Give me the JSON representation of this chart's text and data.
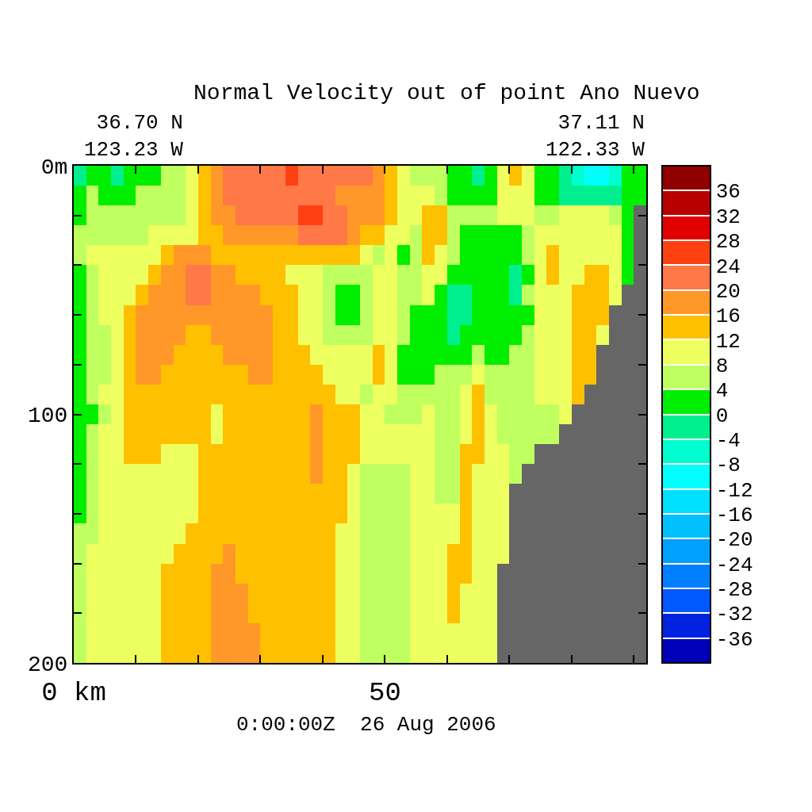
{
  "chart_data": {
    "type": "heatmap",
    "title": "Normal Velocity out of point Ano Nuevo",
    "annotations": [
      "36.70 N\n123.23 W",
      "37.11 N\n122.33 W",
      "0:00:00Z  26 Aug 2006"
    ],
    "x": [
      1,
      3,
      5,
      7,
      9,
      11,
      13,
      15,
      17,
      19,
      21,
      23,
      25,
      27,
      29,
      31,
      33,
      35,
      37,
      39,
      41,
      43,
      45,
      47,
      49,
      51,
      53,
      55,
      57,
      59,
      61,
      63,
      65,
      67,
      69,
      71,
      73,
      75,
      77,
      79,
      81,
      83,
      85,
      87,
      89,
      91
    ],
    "cells": [
      [
        -2,
        2,
        2,
        -2,
        2,
        2,
        2,
        6,
        6,
        10,
        14,
        18,
        22,
        22,
        22,
        22,
        22,
        26,
        22,
        22,
        22,
        22,
        22,
        22,
        18,
        14,
        10,
        6,
        6,
        6,
        2,
        2,
        -2,
        2,
        10,
        14,
        10,
        2,
        2,
        -2,
        -6,
        -10,
        -10,
        -6,
        2,
        2
      ],
      [
        2,
        6,
        2,
        2,
        2,
        6,
        6,
        6,
        6,
        10,
        14,
        18,
        22,
        22,
        22,
        22,
        22,
        22,
        22,
        22,
        22,
        18,
        18,
        18,
        18,
        14,
        10,
        10,
        10,
        6,
        2,
        2,
        2,
        2,
        10,
        10,
        10,
        2,
        2,
        -2,
        -2,
        -2,
        -2,
        -2,
        2,
        2
      ],
      [
        2,
        6,
        6,
        6,
        6,
        6,
        6,
        6,
        6,
        10,
        14,
        18,
        18,
        22,
        22,
        22,
        22,
        22,
        26,
        26,
        22,
        22,
        18,
        18,
        18,
        14,
        10,
        10,
        14,
        14,
        6,
        6,
        6,
        6,
        10,
        10,
        10,
        6,
        6,
        10,
        10,
        10,
        10,
        6,
        2,
        null
      ],
      [
        6,
        6,
        6,
        6,
        6,
        6,
        10,
        10,
        10,
        10,
        14,
        14,
        18,
        18,
        18,
        18,
        18,
        18,
        22,
        22,
        22,
        22,
        18,
        14,
        14,
        10,
        10,
        6,
        14,
        14,
        6,
        2,
        2,
        2,
        2,
        2,
        6,
        10,
        10,
        10,
        10,
        10,
        10,
        10,
        2,
        null
      ],
      [
        6,
        10,
        10,
        10,
        10,
        10,
        10,
        14,
        18,
        18,
        18,
        14,
        14,
        14,
        14,
        14,
        14,
        14,
        14,
        14,
        14,
        14,
        14,
        10,
        6,
        10,
        2,
        6,
        14,
        10,
        6,
        2,
        2,
        2,
        2,
        2,
        6,
        10,
        14,
        10,
        10,
        10,
        10,
        10,
        2,
        null
      ],
      [
        2,
        6,
        10,
        10,
        10,
        10,
        14,
        18,
        18,
        22,
        22,
        18,
        18,
        14,
        14,
        14,
        14,
        10,
        10,
        10,
        6,
        6,
        6,
        6,
        10,
        10,
        6,
        6,
        10,
        10,
        2,
        2,
        2,
        2,
        2,
        -2,
        2,
        10,
        14,
        10,
        10,
        14,
        14,
        10,
        2,
        null
      ],
      [
        2,
        6,
        10,
        10,
        10,
        14,
        18,
        18,
        18,
        22,
        22,
        18,
        18,
        18,
        18,
        14,
        14,
        14,
        10,
        10,
        6,
        2,
        2,
        6,
        10,
        10,
        6,
        6,
        10,
        2,
        -2,
        -2,
        2,
        2,
        2,
        -2,
        6,
        10,
        10,
        10,
        14,
        14,
        14,
        10,
        null,
        null
      ],
      [
        2,
        6,
        10,
        10,
        14,
        18,
        18,
        18,
        18,
        18,
        18,
        18,
        18,
        18,
        18,
        18,
        14,
        14,
        10,
        10,
        6,
        2,
        2,
        6,
        10,
        10,
        6,
        2,
        2,
        2,
        -2,
        -2,
        2,
        2,
        2,
        2,
        2,
        10,
        10,
        10,
        14,
        14,
        14,
        null,
        null,
        null
      ],
      [
        2,
        6,
        6,
        10,
        14,
        18,
        18,
        18,
        18,
        14,
        14,
        18,
        18,
        18,
        18,
        18,
        14,
        14,
        10,
        10,
        6,
        6,
        6,
        6,
        10,
        10,
        6,
        2,
        2,
        2,
        -2,
        2,
        2,
        2,
        2,
        2,
        6,
        10,
        10,
        10,
        14,
        14,
        10,
        null,
        null,
        null
      ],
      [
        2,
        6,
        6,
        10,
        14,
        18,
        18,
        18,
        14,
        14,
        14,
        14,
        18,
        18,
        18,
        18,
        14,
        14,
        14,
        10,
        10,
        10,
        10,
        10,
        14,
        10,
        2,
        2,
        2,
        2,
        2,
        2,
        6,
        2,
        2,
        6,
        6,
        10,
        10,
        10,
        14,
        14,
        null,
        null,
        null,
        null
      ],
      [
        2,
        6,
        6,
        10,
        14,
        18,
        18,
        14,
        14,
        14,
        14,
        14,
        14,
        14,
        18,
        18,
        14,
        14,
        14,
        14,
        10,
        10,
        10,
        10,
        14,
        10,
        2,
        2,
        2,
        6,
        6,
        6,
        10,
        6,
        6,
        6,
        6,
        10,
        10,
        10,
        14,
        14,
        null,
        null,
        null,
        null
      ],
      [
        2,
        6,
        10,
        10,
        14,
        14,
        14,
        14,
        14,
        14,
        14,
        14,
        14,
        14,
        14,
        14,
        14,
        14,
        14,
        14,
        14,
        10,
        10,
        6,
        10,
        10,
        6,
        6,
        6,
        6,
        6,
        10,
        14,
        6,
        6,
        6,
        6,
        10,
        10,
        10,
        14,
        null,
        null,
        null,
        null,
        null
      ],
      [
        2,
        2,
        6,
        10,
        14,
        14,
        14,
        14,
        14,
        14,
        14,
        10,
        14,
        14,
        14,
        14,
        14,
        14,
        14,
        18,
        14,
        14,
        14,
        10,
        10,
        6,
        6,
        6,
        10,
        6,
        6,
        10,
        14,
        10,
        6,
        6,
        6,
        6,
        6,
        10,
        null,
        null,
        null,
        null,
        null,
        null
      ],
      [
        2,
        6,
        10,
        10,
        14,
        14,
        14,
        14,
        14,
        14,
        14,
        10,
        14,
        14,
        14,
        14,
        14,
        14,
        14,
        18,
        14,
        14,
        14,
        10,
        10,
        10,
        10,
        10,
        10,
        6,
        6,
        10,
        14,
        10,
        6,
        6,
        6,
        6,
        6,
        null,
        null,
        null,
        null,
        null,
        null,
        null
      ],
      [
        2,
        6,
        10,
        10,
        14,
        14,
        14,
        10,
        10,
        10,
        14,
        14,
        14,
        14,
        14,
        14,
        14,
        14,
        14,
        18,
        14,
        14,
        14,
        10,
        10,
        10,
        10,
        10,
        10,
        6,
        6,
        14,
        14,
        10,
        10,
        6,
        6,
        null,
        null,
        null,
        null,
        null,
        null,
        null,
        null,
        null
      ],
      [
        2,
        6,
        10,
        10,
        10,
        10,
        10,
        10,
        10,
        10,
        14,
        14,
        14,
        14,
        14,
        14,
        14,
        14,
        14,
        18,
        14,
        14,
        10,
        6,
        6,
        6,
        6,
        10,
        10,
        6,
        6,
        14,
        10,
        10,
        10,
        6,
        null,
        null,
        null,
        null,
        null,
        null,
        null,
        null,
        null,
        null
      ],
      [
        2,
        6,
        10,
        10,
        10,
        10,
        10,
        10,
        10,
        10,
        14,
        14,
        14,
        14,
        14,
        14,
        14,
        14,
        14,
        14,
        14,
        14,
        10,
        6,
        6,
        6,
        6,
        10,
        10,
        6,
        6,
        14,
        10,
        10,
        10,
        null,
        null,
        null,
        null,
        null,
        null,
        null,
        null,
        null,
        null,
        null
      ],
      [
        2,
        6,
        10,
        10,
        10,
        10,
        10,
        10,
        10,
        10,
        14,
        14,
        14,
        14,
        14,
        14,
        14,
        14,
        14,
        14,
        14,
        14,
        10,
        6,
        6,
        6,
        6,
        10,
        10,
        10,
        10,
        14,
        10,
        10,
        10,
        null,
        null,
        null,
        null,
        null,
        null,
        null,
        null,
        null,
        null,
        null
      ],
      [
        6,
        6,
        10,
        10,
        10,
        10,
        10,
        10,
        10,
        14,
        14,
        14,
        14,
        14,
        14,
        14,
        14,
        14,
        14,
        14,
        14,
        10,
        10,
        6,
        6,
        6,
        6,
        10,
        10,
        10,
        10,
        14,
        10,
        10,
        10,
        null,
        null,
        null,
        null,
        null,
        null,
        null,
        null,
        null,
        null,
        null
      ],
      [
        6,
        10,
        10,
        10,
        10,
        10,
        10,
        10,
        14,
        14,
        14,
        14,
        18,
        14,
        14,
        14,
        14,
        14,
        14,
        14,
        14,
        10,
        10,
        6,
        6,
        6,
        6,
        10,
        10,
        10,
        14,
        14,
        10,
        10,
        10,
        null,
        null,
        null,
        null,
        null,
        null,
        null,
        null,
        null,
        null,
        null
      ],
      [
        6,
        10,
        10,
        10,
        10,
        10,
        10,
        14,
        14,
        14,
        14,
        18,
        18,
        14,
        14,
        14,
        14,
        14,
        14,
        14,
        14,
        10,
        10,
        6,
        6,
        6,
        6,
        10,
        10,
        10,
        14,
        14,
        10,
        10,
        null,
        null,
        null,
        null,
        null,
        null,
        null,
        null,
        null,
        null,
        null,
        null
      ],
      [
        6,
        10,
        10,
        10,
        10,
        10,
        10,
        14,
        14,
        14,
        14,
        18,
        18,
        18,
        14,
        14,
        14,
        14,
        14,
        14,
        14,
        10,
        10,
        6,
        6,
        6,
        6,
        10,
        10,
        10,
        14,
        10,
        10,
        10,
        null,
        null,
        null,
        null,
        null,
        null,
        null,
        null,
        null,
        null,
        null,
        null
      ],
      [
        6,
        10,
        10,
        10,
        10,
        10,
        10,
        14,
        14,
        14,
        14,
        18,
        18,
        18,
        14,
        14,
        14,
        14,
        14,
        14,
        14,
        10,
        10,
        6,
        6,
        6,
        6,
        10,
        10,
        10,
        14,
        10,
        10,
        10,
        null,
        null,
        null,
        null,
        null,
        null,
        null,
        null,
        null,
        null,
        null,
        null
      ],
      [
        6,
        10,
        10,
        10,
        10,
        10,
        10,
        14,
        14,
        14,
        14,
        18,
        18,
        18,
        18,
        14,
        14,
        14,
        14,
        14,
        14,
        10,
        10,
        6,
        6,
        6,
        6,
        10,
        10,
        10,
        10,
        10,
        10,
        10,
        null,
        null,
        null,
        null,
        null,
        null,
        null,
        null,
        null,
        null,
        null,
        null
      ],
      [
        6,
        10,
        10,
        10,
        10,
        10,
        10,
        14,
        14,
        14,
        14,
        18,
        18,
        18,
        18,
        14,
        14,
        14,
        14,
        14,
        14,
        10,
        10,
        6,
        6,
        6,
        6,
        10,
        10,
        10,
        10,
        10,
        10,
        10,
        null,
        null,
        null,
        null,
        null,
        null,
        null,
        null,
        null,
        null,
        null,
        null
      ]
    ],
    "colors": [
      "#0000b8",
      "#0022e0",
      "#0058ff",
      "#0080ff",
      "#00a0ff",
      "#00c0ff",
      "#00e0ff",
      "#00ffff",
      "#00ffd0",
      "#00f090",
      "#00ee00",
      "#c0ff60",
      "#eeff60",
      "#ffc000",
      "#ff9828",
      "#ff7848",
      "#ff4010",
      "#e00000",
      "#b80000",
      "#900000"
    ],
    "clim": [
      -40,
      40
    ],
    "cticks": [
      -36,
      -32,
      -28,
      -24,
      -20,
      -16,
      -12,
      -8,
      -4,
      0,
      4,
      8,
      12,
      16,
      20,
      24,
      28,
      32,
      36
    ],
    "xlim": [
      0,
      92
    ],
    "xticks": [
      {
        "value": 0,
        "label": "0 km"
      },
      {
        "value": 10,
        "label": null
      },
      {
        "value": 20,
        "label": null
      },
      {
        "value": 30,
        "label": null
      },
      {
        "value": 40,
        "label": null
      },
      50,
      {
        "value": 60,
        "label": null
      },
      {
        "value": 70,
        "label": null
      },
      {
        "value": 80,
        "label": null
      },
      {
        "value": 90,
        "label": null
      }
    ],
    "ylim": [
      200,
      0
    ],
    "yticks": [
      {
        "value": 0,
        "label": "0m"
      },
      {
        "value": 20,
        "label": null
      },
      {
        "value": 40,
        "label": null
      },
      {
        "value": 60,
        "label": null
      },
      {
        "value": 80,
        "label": null
      },
      100,
      {
        "value": 120,
        "label": null
      },
      {
        "value": 140,
        "label": null
      },
      {
        "value": 160,
        "label": null
      },
      {
        "value": 180,
        "label": null
      },
      200
    ]
  }
}
